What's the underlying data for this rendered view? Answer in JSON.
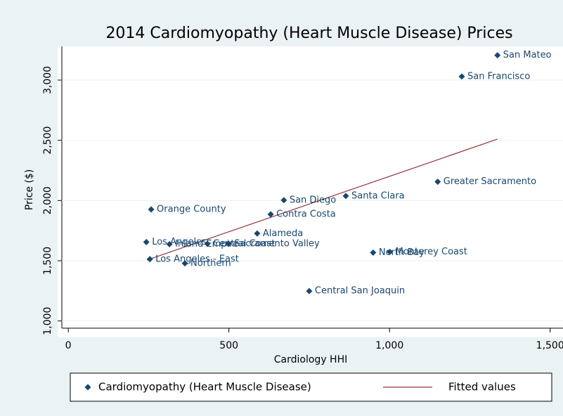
{
  "chart_data": {
    "type": "scatter",
    "title": "2014 Cardiomyopathy (Heart Muscle Disease) Prices",
    "xlabel": "Cardiology HHI",
    "ylabel": "Price ($)",
    "xlim": [
      -20,
      1540
    ],
    "ylim": [
      940,
      3280
    ],
    "xticks": [
      0,
      500,
      {
        "value": 1000,
        "label": "1,000"
      },
      {
        "value": 1500,
        "label": "1,500"
      }
    ],
    "yticks": [
      {
        "value": 1000,
        "label": "1,000"
      },
      {
        "value": 1500,
        "label": "1,500"
      },
      {
        "value": 2000,
        "label": "2,000"
      },
      {
        "value": 2500,
        "label": "2,500"
      },
      {
        "value": 3000,
        "label": "3,000"
      }
    ],
    "grid": true,
    "legend": "bottom",
    "series": [
      {
        "name": "Cardiomyopathy (Heart Muscle Disease)",
        "type": "scatter",
        "color": "#1a476f",
        "labels": [
          "San Mateo",
          "San Francisco",
          "Greater Sacramento",
          "Santa Clara",
          "San Diego",
          "Orange County",
          "Contra Costa",
          "Alameda",
          "Los Angeles",
          "Inland Empire",
          "Central Coast",
          "Sacramento Valley",
          "North Bay",
          "Monterey Coast",
          "Los Angeles - East",
          "Northern",
          "Central San Joaquin"
        ],
        "x": [
          1336,
          1225,
          1150,
          864,
          671,
          258,
          630,
          588,
          243,
          315,
          433,
          499,
          949,
          1001,
          254,
          363,
          750
        ],
        "values": [
          3206,
          3030,
          2156,
          2038,
          2003,
          1926,
          1885,
          1726,
          1655,
          1637,
          1640,
          1640,
          1567,
          1573,
          1513,
          1478,
          1248
        ]
      },
      {
        "name": "Fitted values",
        "type": "line",
        "color": "#90353b",
        "x": [
          245,
          1336
        ],
        "values": [
          1506,
          2510
        ]
      }
    ]
  }
}
